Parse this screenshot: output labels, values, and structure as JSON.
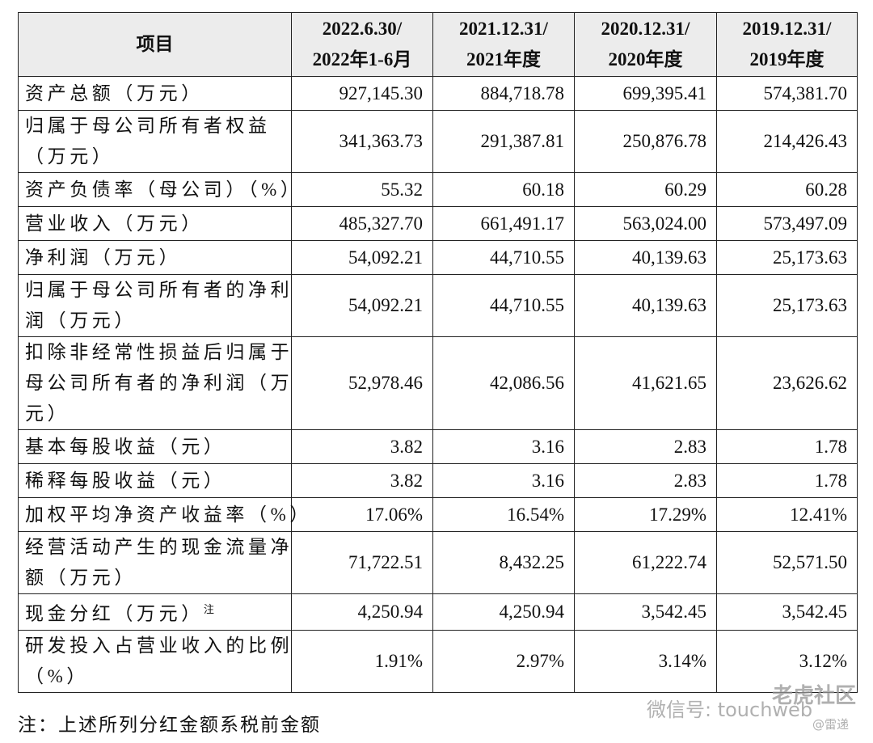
{
  "table": {
    "header": [
      [
        "项目"
      ],
      [
        "2022.6.30/",
        "2022年1-6月"
      ],
      [
        "2021.12.31/",
        "2021年度"
      ],
      [
        "2020.12.31/",
        "2020年度"
      ],
      [
        "2019.12.31/",
        "2019年度"
      ]
    ],
    "rows": [
      {
        "label": [
          "资产总额（万元）"
        ],
        "values": [
          "927,145.30",
          "884,718.78",
          "699,395.41",
          "574,381.70"
        ]
      },
      {
        "label": [
          "归属于母公司所有者权益",
          "（万元）"
        ],
        "values": [
          "341,363.73",
          "291,387.81",
          "250,876.78",
          "214,426.43"
        ]
      },
      {
        "label": [
          "资产负债率（母公司）（%）"
        ],
        "values": [
          "55.32",
          "60.18",
          "60.29",
          "60.28"
        ]
      },
      {
        "label": [
          "营业收入（万元）"
        ],
        "values": [
          "485,327.70",
          "661,491.17",
          "563,024.00",
          "573,497.09"
        ]
      },
      {
        "label": [
          "净利润（万元）"
        ],
        "values": [
          "54,092.21",
          "44,710.55",
          "40,139.63",
          "25,173.63"
        ]
      },
      {
        "label": [
          "归属于母公司所有者的净利",
          "润（万元）"
        ],
        "values": [
          "54,092.21",
          "44,710.55",
          "40,139.63",
          "25,173.63"
        ]
      },
      {
        "label": [
          "扣除非经常性损益后归属于",
          "母公司所有者的净利润（万",
          "元）"
        ],
        "values": [
          "52,978.46",
          "42,086.56",
          "41,621.65",
          "23,626.62"
        ]
      },
      {
        "label": [
          "基本每股收益（元）"
        ],
        "values": [
          "3.82",
          "3.16",
          "2.83",
          "1.78"
        ]
      },
      {
        "label": [
          "稀释每股收益（元）"
        ],
        "values": [
          "3.82",
          "3.16",
          "2.83",
          "1.78"
        ]
      },
      {
        "label": [
          "加权平均净资产收益率（%）"
        ],
        "values": [
          "17.06%",
          "16.54%",
          "17.29%",
          "12.41%"
        ]
      },
      {
        "label": [
          "经营活动产生的现金流量净",
          "额（万元）"
        ],
        "values": [
          "71,722.51",
          "8,432.25",
          "61,222.74",
          "52,571.50"
        ]
      },
      {
        "label": [
          "现金分红（万元）"
        ],
        "note": "注",
        "values": [
          "4,250.94",
          "4,250.94",
          "3,542.45",
          "3,542.45"
        ]
      },
      {
        "label": [
          "研发投入占营业收入的比例",
          "（%）"
        ],
        "values": [
          "1.91%",
          "2.97%",
          "3.14%",
          "3.12%"
        ]
      }
    ]
  },
  "footnote": "注：上述所列分红金额系税前金额",
  "watermark": {
    "wechat": "微信号: touchweb",
    "brand": "老虎社区",
    "source": "@雷递"
  }
}
